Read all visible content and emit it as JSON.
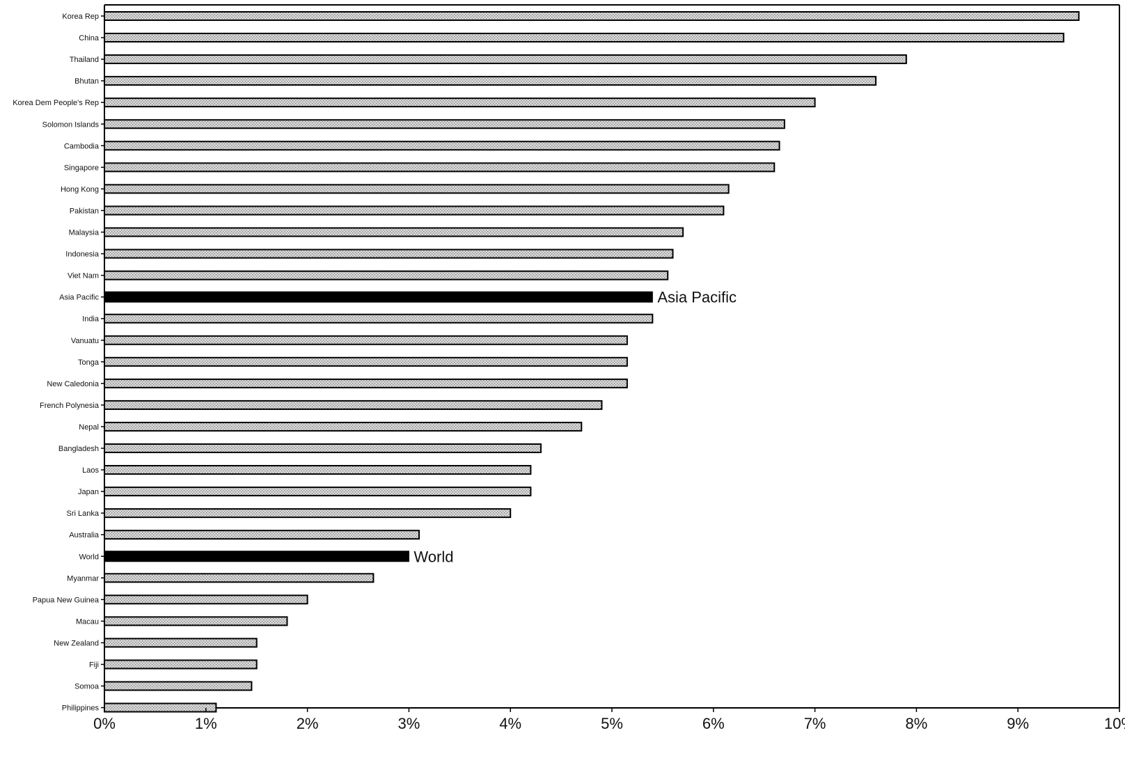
{
  "chart_data": {
    "type": "bar",
    "orientation": "horizontal",
    "title": "",
    "xlabel": "",
    "ylabel": "",
    "xlim": [
      0,
      10
    ],
    "x_tick_values": [
      0,
      1,
      2,
      3,
      4,
      5,
      6,
      7,
      8,
      9,
      10
    ],
    "x_tick_labels": [
      "0%",
      "1%",
      "2%",
      "3%",
      "4%",
      "5%",
      "6%",
      "7%",
      "8%",
      "9%",
      "10%"
    ],
    "unit": "%",
    "grid": false,
    "legend": "none",
    "colors": {
      "bar_fill": "#bdbdbd",
      "highlight_fill": "#000000",
      "stroke": "#000000"
    },
    "categories": [
      "Korea Rep",
      "China",
      "Thailand",
      "Bhutan",
      "Korea Dem People's Rep",
      "Solomon Islands",
      "Cambodia",
      "Singapore",
      "Hong Kong",
      "Pakistan",
      "Malaysia",
      "Indonesia",
      "Viet Nam",
      "Asia Pacific",
      "India",
      "Vanuatu",
      "Tonga",
      "New Caledonia",
      "French Polynesia",
      "Nepal",
      "Bangladesh",
      "Laos",
      "Japan",
      "Sri Lanka",
      "Australia",
      "World",
      "Myanmar",
      "Papua New Guinea",
      "Macau",
      "New Zealand",
      "Fiji",
      "Somoa",
      "Philippines"
    ],
    "values": [
      9.6,
      9.45,
      7.9,
      7.6,
      7.0,
      6.7,
      6.65,
      6.6,
      6.15,
      6.1,
      5.7,
      5.6,
      5.55,
      5.4,
      5.4,
      5.15,
      5.15,
      5.15,
      4.9,
      4.7,
      4.3,
      4.2,
      4.2,
      4.0,
      3.1,
      3.0,
      2.65,
      2.0,
      1.8,
      1.5,
      1.5,
      1.45,
      1.1
    ],
    "highlighted": [
      "Asia Pacific",
      "World"
    ],
    "annotations": [
      {
        "category": "Asia Pacific",
        "text": "Asia Pacific"
      },
      {
        "category": "World",
        "text": "World"
      }
    ]
  }
}
